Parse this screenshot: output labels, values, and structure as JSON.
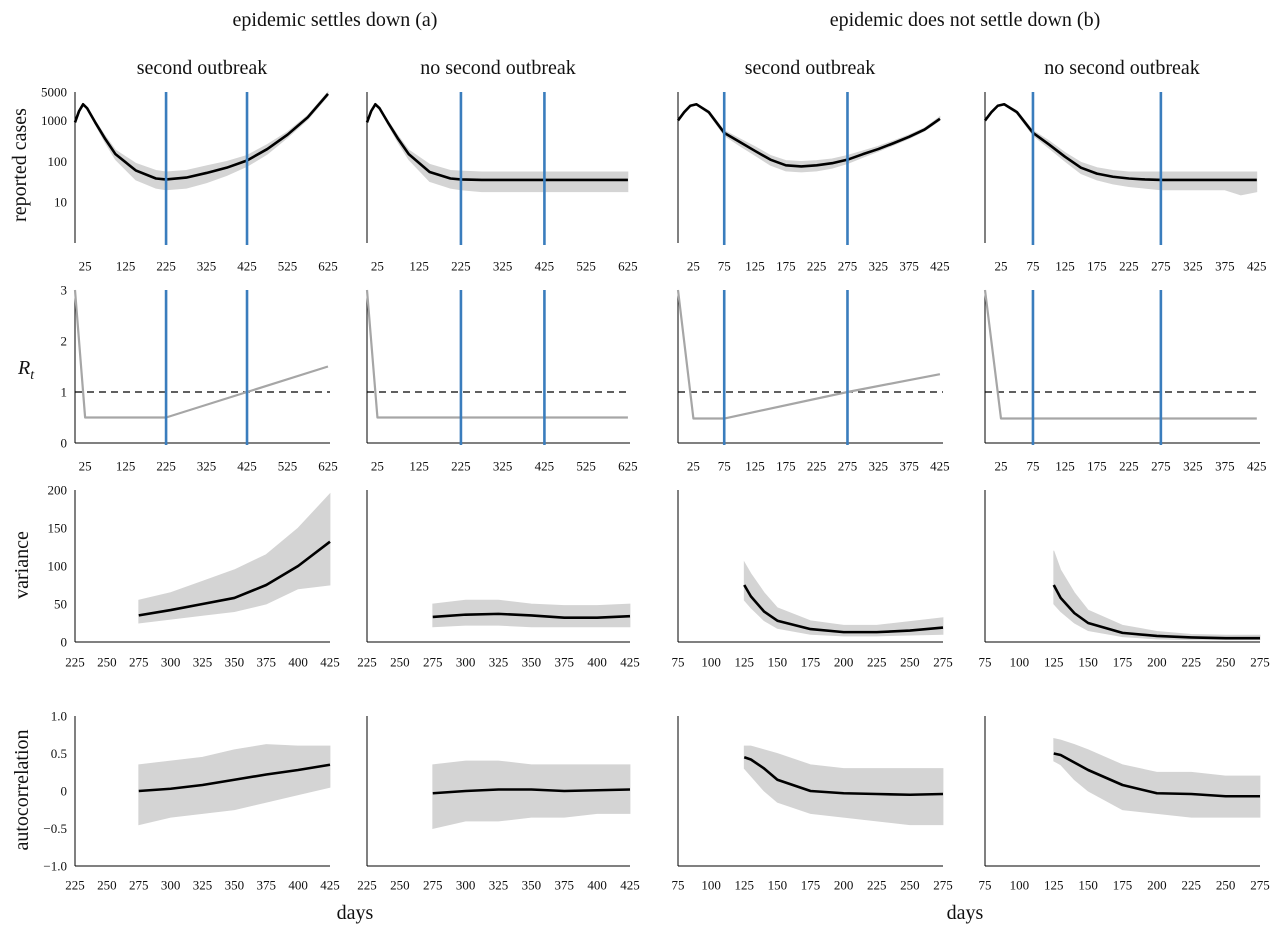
{
  "figure": {
    "group_titles": [
      "epidemic settles down (a)",
      "epidemic does not settle down (b)"
    ],
    "column_titles": [
      "second outbreak",
      "no second outbreak",
      "second outbreak",
      "no second outbreak"
    ],
    "row_labels": [
      "reported cases",
      {
        "text": "R",
        "subscript": "t"
      },
      "variance",
      "autocorrelation"
    ],
    "x_labels": [
      "days",
      "days"
    ]
  },
  "chart_data": [
    {
      "type": "line",
      "log_y": true,
      "x": [
        0,
        10,
        20,
        30,
        50,
        75,
        100,
        150,
        200,
        225,
        275,
        325,
        375,
        425,
        475,
        525,
        575,
        625
      ],
      "xlim": [
        0,
        630
      ],
      "xticks": [
        25,
        125,
        225,
        325,
        425,
        525,
        625
      ],
      "ylim": [
        1,
        5000
      ],
      "yticks": [
        5000,
        1000,
        100,
        10
      ],
      "band": {
        "color": "#d4d4d4",
        "lower": [
          900,
          1700,
          2500,
          1900,
          800,
          280,
          110,
          35,
          22,
          20,
          22,
          30,
          45,
          75,
          150,
          380,
          1050,
          4000
        ],
        "upper": [
          900,
          1700,
          2500,
          2100,
          1000,
          420,
          190,
          90,
          60,
          55,
          60,
          78,
          100,
          140,
          260,
          530,
          1350,
          5000
        ]
      },
      "series": [
        {
          "color": "#000000",
          "values": [
            900,
            1700,
            2500,
            2000,
            900,
            350,
            150,
            60,
            38,
            36,
            40,
            52,
            70,
            105,
            200,
            450,
            1200,
            4500
          ]
        }
      ],
      "vlines": {
        "color": "#3a7dbd",
        "values": [
          225,
          425
        ]
      }
    },
    {
      "type": "line",
      "log_y": true,
      "x": [
        0,
        10,
        20,
        30,
        50,
        75,
        100,
        150,
        200,
        225,
        275,
        325,
        375,
        425,
        475,
        525,
        575,
        625
      ],
      "xlim": [
        0,
        630
      ],
      "xticks": [
        25,
        125,
        225,
        325,
        425,
        525,
        625
      ],
      "ylim": [
        1,
        5000
      ],
      "band": {
        "color": "#d4d4d4",
        "lower": [
          900,
          1700,
          2500,
          1900,
          800,
          280,
          110,
          32,
          22,
          20,
          18,
          18,
          18,
          18,
          18,
          18,
          18,
          18
        ],
        "upper": [
          900,
          1700,
          2500,
          2100,
          1000,
          420,
          190,
          85,
          60,
          58,
          55,
          55,
          55,
          55,
          55,
          55,
          55,
          55
        ]
      },
      "series": [
        {
          "color": "#000000",
          "values": [
            900,
            1700,
            2500,
            2000,
            900,
            350,
            150,
            55,
            38,
            36,
            35,
            35,
            35,
            35,
            35,
            35,
            35,
            35
          ]
        }
      ],
      "vlines": {
        "color": "#3a7dbd",
        "values": [
          225,
          425
        ]
      }
    },
    {
      "type": "line",
      "log_y": true,
      "x": [
        0,
        10,
        20,
        30,
        50,
        75,
        100,
        125,
        150,
        175,
        200,
        225,
        250,
        275,
        300,
        325,
        350,
        375,
        400,
        425
      ],
      "xlim": [
        0,
        430
      ],
      "xticks": [
        25,
        75,
        125,
        175,
        225,
        275,
        325,
        375,
        425
      ],
      "ylim": [
        1,
        5000
      ],
      "band": {
        "color": "#d4d4d4",
        "lower": [
          1000,
          1600,
          2300,
          2400,
          1450,
          430,
          240,
          140,
          80,
          58,
          55,
          58,
          68,
          88,
          125,
          175,
          250,
          360,
          550,
          1000
        ],
        "upper": [
          1000,
          1600,
          2300,
          2600,
          1750,
          570,
          360,
          230,
          140,
          105,
          100,
          105,
          115,
          140,
          180,
          235,
          320,
          450,
          660,
          1250
        ]
      },
      "series": [
        {
          "color": "#000000",
          "values": [
            1000,
            1600,
            2300,
            2500,
            1600,
            500,
            300,
            180,
            110,
            80,
            75,
            80,
            90,
            110,
            150,
            200,
            280,
            400,
            600,
            1100
          ]
        }
      ],
      "vlines": {
        "color": "#3a7dbd",
        "values": [
          75,
          275
        ]
      }
    },
    {
      "type": "line",
      "log_y": true,
      "x": [
        0,
        10,
        20,
        30,
        50,
        75,
        100,
        125,
        150,
        175,
        200,
        225,
        250,
        275,
        300,
        325,
        350,
        375,
        400,
        425
      ],
      "xlim": [
        0,
        430
      ],
      "xticks": [
        25,
        75,
        125,
        175,
        225,
        275,
        325,
        375,
        425
      ],
      "ylim": [
        1,
        5000
      ],
      "band": {
        "color": "#d4d4d4",
        "lower": [
          1000,
          1600,
          2300,
          2400,
          1450,
          430,
          210,
          100,
          50,
          35,
          28,
          24,
          22,
          20,
          20,
          20,
          20,
          20,
          15,
          18
        ],
        "upper": [
          1000,
          1600,
          2300,
          2600,
          1750,
          570,
          320,
          165,
          95,
          70,
          60,
          55,
          55,
          55,
          55,
          55,
          55,
          55,
          55,
          55
        ]
      },
      "series": [
        {
          "color": "#000000",
          "values": [
            1000,
            1600,
            2300,
            2500,
            1600,
            500,
            260,
            130,
            70,
            50,
            42,
            38,
            36,
            35,
            35,
            35,
            35,
            35,
            35,
            35
          ]
        }
      ],
      "vlines": {
        "color": "#3a7dbd",
        "values": [
          75,
          275
        ]
      }
    },
    {
      "type": "line",
      "x": [
        0,
        25,
        225,
        425,
        625
      ],
      "xlim": [
        0,
        630
      ],
      "xticks": [
        25,
        125,
        225,
        325,
        425,
        525,
        625
      ],
      "ylim": [
        0,
        3
      ],
      "yticks": [
        0,
        1,
        2,
        3
      ],
      "series": [
        {
          "color": "#a6a6a6",
          "values": [
            3,
            0.5,
            0.5,
            1,
            1.5
          ]
        }
      ],
      "hline": {
        "value": 1,
        "color": "#000000",
        "dashed": true
      },
      "vlines": {
        "color": "#3a7dbd",
        "values": [
          225,
          425
        ]
      }
    },
    {
      "type": "line",
      "x": [
        0,
        25,
        625
      ],
      "xlim": [
        0,
        630
      ],
      "xticks": [
        25,
        125,
        225,
        325,
        425,
        525,
        625
      ],
      "ylim": [
        0,
        3
      ],
      "series": [
        {
          "color": "#a6a6a6",
          "values": [
            3,
            0.5,
            0.5
          ]
        }
      ],
      "hline": {
        "value": 1,
        "color": "#000000",
        "dashed": true
      },
      "vlines": {
        "color": "#3a7dbd",
        "values": [
          225,
          425
        ]
      }
    },
    {
      "type": "line",
      "x": [
        0,
        25,
        75,
        275,
        425
      ],
      "xlim": [
        0,
        430
      ],
      "xticks": [
        25,
        75,
        125,
        175,
        225,
        275,
        325,
        375,
        425
      ],
      "ylim": [
        0,
        3
      ],
      "series": [
        {
          "color": "#a6a6a6",
          "values": [
            3,
            0.48,
            0.48,
            1,
            1.35
          ]
        }
      ],
      "hline": {
        "value": 1,
        "color": "#000000",
        "dashed": true
      },
      "vlines": {
        "color": "#3a7dbd",
        "values": [
          75,
          275
        ]
      }
    },
    {
      "type": "line",
      "x": [
        0,
        25,
        425
      ],
      "xlim": [
        0,
        430
      ],
      "xticks": [
        25,
        75,
        125,
        175,
        225,
        275,
        325,
        375,
        425
      ],
      "ylim": [
        0,
        3
      ],
      "series": [
        {
          "color": "#a6a6a6",
          "values": [
            3,
            0.48,
            0.48
          ]
        }
      ],
      "hline": {
        "value": 1,
        "color": "#000000",
        "dashed": true
      },
      "vlines": {
        "color": "#3a7dbd",
        "values": [
          75,
          275
        ]
      }
    },
    {
      "type": "line",
      "x": [
        275,
        300,
        325,
        350,
        375,
        400,
        425
      ],
      "xlim": [
        225,
        425
      ],
      "xticks": [
        225,
        250,
        275,
        300,
        325,
        350,
        375,
        400,
        425
      ],
      "ylim": [
        0,
        200
      ],
      "yticks": [
        0,
        50,
        100,
        150,
        200
      ],
      "band": {
        "color": "#d4d4d4",
        "lower": [
          25,
          30,
          35,
          40,
          50,
          70,
          75
        ],
        "upper": [
          55,
          65,
          80,
          95,
          115,
          150,
          195
        ]
      },
      "series": [
        {
          "color": "#000000",
          "values": [
            35,
            42,
            50,
            58,
            75,
            100,
            132
          ]
        }
      ]
    },
    {
      "type": "line",
      "x": [
        275,
        300,
        325,
        350,
        375,
        400,
        425
      ],
      "xlim": [
        225,
        425
      ],
      "xticks": [
        225,
        250,
        275,
        300,
        325,
        350,
        375,
        400,
        425
      ],
      "ylim": [
        0,
        200
      ],
      "band": {
        "color": "#d4d4d4",
        "lower": [
          20,
          22,
          22,
          20,
          20,
          20,
          20
        ],
        "upper": [
          50,
          55,
          55,
          50,
          48,
          48,
          50
        ]
      },
      "series": [
        {
          "color": "#000000",
          "values": [
            33,
            36,
            37,
            35,
            32,
            32,
            34
          ]
        }
      ]
    },
    {
      "type": "line",
      "x": [
        125,
        130,
        140,
        150,
        175,
        200,
        225,
        250,
        275
      ],
      "xlim": [
        75,
        275
      ],
      "xticks": [
        75,
        100,
        125,
        150,
        175,
        200,
        225,
        250,
        275
      ],
      "ylim": [
        0,
        200
      ],
      "band": {
        "color": "#d4d4d4",
        "lower": [
          55,
          45,
          28,
          18,
          10,
          8,
          8,
          9,
          10
        ],
        "upper": [
          105,
          90,
          65,
          45,
          28,
          22,
          22,
          27,
          32
        ]
      },
      "series": [
        {
          "color": "#000000",
          "values": [
            75,
            60,
            40,
            28,
            17,
            13,
            13,
            15,
            19
          ]
        }
      ]
    },
    {
      "type": "line",
      "x": [
        125,
        130,
        140,
        150,
        175,
        200,
        225,
        250,
        275
      ],
      "xlim": [
        75,
        275
      ],
      "xticks": [
        75,
        100,
        125,
        150,
        175,
        200,
        225,
        250,
        275
      ],
      "ylim": [
        0,
        200
      ],
      "band": {
        "color": "#d4d4d4",
        "lower": [
          50,
          40,
          25,
          15,
          7,
          4,
          3,
          3,
          3
        ],
        "upper": [
          120,
          95,
          65,
          42,
          22,
          14,
          10,
          9,
          9
        ]
      },
      "series": [
        {
          "color": "#000000",
          "values": [
            75,
            58,
            38,
            25,
            12,
            8,
            6,
            5,
            5
          ]
        }
      ]
    },
    {
      "type": "line",
      "x": [
        275,
        300,
        325,
        350,
        375,
        400,
        425
      ],
      "xlim": [
        225,
        425
      ],
      "xticks": [
        225,
        250,
        275,
        300,
        325,
        350,
        375,
        400,
        425
      ],
      "ylim": [
        -1,
        1
      ],
      "yticks": [
        {
          "value": 1,
          "label": "1.0"
        },
        {
          "value": 0.5,
          "label": "0.5"
        },
        0,
        {
          "value": -0.5,
          "label": "−0.5"
        },
        {
          "value": -1,
          "label": "−1.0"
        }
      ],
      "band": {
        "color": "#d4d4d4",
        "lower": [
          -0.45,
          -0.35,
          -0.3,
          -0.25,
          -0.15,
          -0.05,
          0.05
        ],
        "upper": [
          0.35,
          0.4,
          0.45,
          0.55,
          0.62,
          0.6,
          0.6
        ]
      },
      "series": [
        {
          "color": "#000000",
          "values": [
            0,
            0.03,
            0.08,
            0.15,
            0.22,
            0.28,
            0.35
          ]
        }
      ]
    },
    {
      "type": "line",
      "x": [
        275,
        300,
        325,
        350,
        375,
        400,
        425
      ],
      "xlim": [
        225,
        425
      ],
      "xticks": [
        225,
        250,
        275,
        300,
        325,
        350,
        375,
        400,
        425
      ],
      "ylim": [
        -1,
        1
      ],
      "band": {
        "color": "#d4d4d4",
        "lower": [
          -0.5,
          -0.4,
          -0.4,
          -0.35,
          -0.35,
          -0.3,
          -0.3
        ],
        "upper": [
          0.35,
          0.4,
          0.4,
          0.35,
          0.35,
          0.35,
          0.35
        ]
      },
      "series": [
        {
          "color": "#000000",
          "values": [
            -0.03,
            0,
            0.02,
            0.02,
            0,
            0.01,
            0.02
          ]
        }
      ]
    },
    {
      "type": "line",
      "x": [
        125,
        130,
        140,
        150,
        175,
        200,
        225,
        250,
        275
      ],
      "xlim": [
        75,
        275
      ],
      "xticks": [
        75,
        100,
        125,
        150,
        175,
        200,
        225,
        250,
        275
      ],
      "ylim": [
        -1,
        1
      ],
      "band": {
        "color": "#d4d4d4",
        "lower": [
          0.3,
          0.2,
          0,
          -0.15,
          -0.3,
          -0.35,
          -0.4,
          -0.45,
          -0.45
        ],
        "upper": [
          0.6,
          0.6,
          0.55,
          0.5,
          0.35,
          0.3,
          0.3,
          0.3,
          0.3
        ]
      },
      "series": [
        {
          "color": "#000000",
          "values": [
            0.45,
            0.42,
            0.3,
            0.15,
            0,
            -0.03,
            -0.04,
            -0.05,
            -0.04
          ]
        }
      ]
    },
    {
      "type": "line",
      "x": [
        125,
        130,
        140,
        150,
        175,
        200,
        225,
        250,
        275
      ],
      "xlim": [
        75,
        275
      ],
      "xticks": [
        75,
        100,
        125,
        150,
        175,
        200,
        225,
        250,
        275
      ],
      "ylim": [
        -1,
        1
      ],
      "band": {
        "color": "#d4d4d4",
        "lower": [
          0.4,
          0.35,
          0.15,
          0,
          -0.25,
          -0.3,
          -0.35,
          -0.35,
          -0.35
        ],
        "upper": [
          0.7,
          0.68,
          0.62,
          0.55,
          0.35,
          0.25,
          0.25,
          0.2,
          0.2
        ]
      },
      "series": [
        {
          "color": "#000000",
          "values": [
            0.5,
            0.48,
            0.38,
            0.28,
            0.08,
            -0.03,
            -0.04,
            -0.07,
            -0.07
          ]
        }
      ]
    }
  ]
}
